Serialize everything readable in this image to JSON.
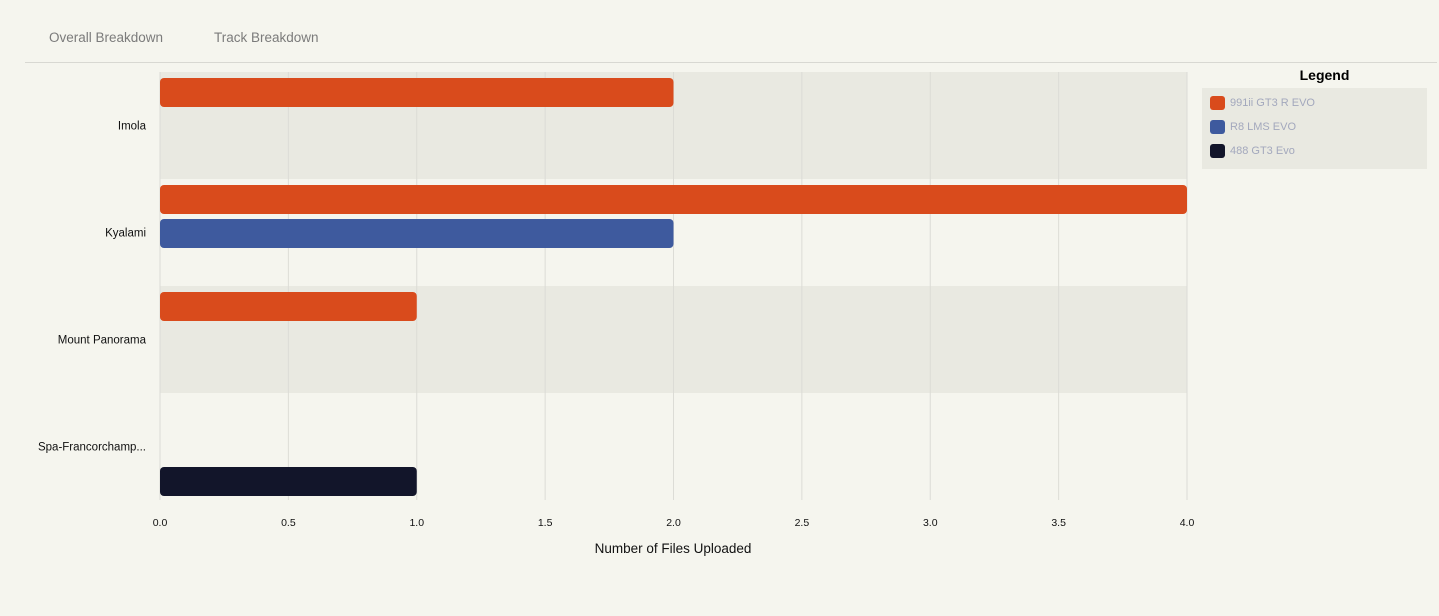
{
  "tabs": [
    {
      "label": "Overall Breakdown"
    },
    {
      "label": "Track Breakdown"
    }
  ],
  "legend": {
    "title": "Legend",
    "items": [
      {
        "label": "991ii GT3 R EVO",
        "color": "#d94b1c"
      },
      {
        "label": "R8 LMS EVO",
        "color": "#3e5a9e"
      },
      {
        "label": "488 GT3 Evo",
        "color": "#12152a"
      }
    ]
  },
  "chart_data": {
    "type": "bar",
    "orientation": "horizontal",
    "categories": [
      "Imola",
      "Kyalami",
      "Mount Panorama",
      "Spa-Francorchamp..."
    ],
    "series": [
      {
        "name": "991ii GT3 R EVO",
        "color": "#d94b1c",
        "values": [
          2,
          4,
          1,
          0
        ]
      },
      {
        "name": "R8 LMS EVO",
        "color": "#3e5a9e",
        "values": [
          0,
          2,
          0,
          0
        ]
      },
      {
        "name": "488 GT3 Evo",
        "color": "#12152a",
        "values": [
          0,
          0,
          0,
          1
        ]
      }
    ],
    "xlabel": "Number of Files Uploaded",
    "ylabel": "",
    "xlim": [
      0,
      4
    ],
    "xticks": [
      "0.0",
      "0.5",
      "1.0",
      "1.5",
      "2.0",
      "2.5",
      "3.0",
      "3.5",
      "4.0"
    ],
    "grid": true,
    "legend_position": "right"
  }
}
